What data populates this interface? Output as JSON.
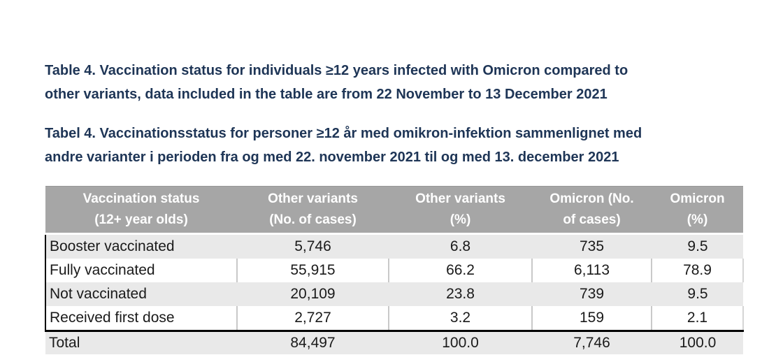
{
  "titles": {
    "english_line1": "Table 4. Vaccination status for individuals ≥12 years infected with Omicron compared to",
    "english_line2": "other variants, data included in the table are from 22 November to 13 December 2021",
    "danish_line1": "Tabel 4. Vaccinationsstatus for personer ≥12 år med omikron-infektion sammenlignet med",
    "danish_line2": "andre varianter i perioden fra og med 22. november 2021 til og med 13. december 2021"
  },
  "table": {
    "header": [
      {
        "line1": "Vaccination status",
        "line2": "(12+ year olds)"
      },
      {
        "line1": "Other variants",
        "line2": "(No. of cases)"
      },
      {
        "line1": "Other variants",
        "line2": "(%)"
      },
      {
        "line1": "Omicron (No.",
        "line2": "of cases)"
      },
      {
        "line1": "Omicron",
        "line2": "(%)"
      }
    ],
    "rows": [
      {
        "label": "Booster vaccinated",
        "other_cases": "5,746",
        "other_pct": "6.8",
        "omicron_cases": "735",
        "omicron_pct": "9.5"
      },
      {
        "label": "Fully vaccinated",
        "other_cases": "55,915",
        "other_pct": "66.2",
        "omicron_cases": "6,113",
        "omicron_pct": "78.9"
      },
      {
        "label": "Not vaccinated",
        "other_cases": "20,109",
        "other_pct": "23.8",
        "omicron_cases": "739",
        "omicron_pct": "9.5"
      },
      {
        "label": "Received first dose",
        "other_cases": "2,727",
        "other_pct": "3.2",
        "omicron_cases": "159",
        "omicron_pct": "2.1"
      }
    ],
    "total": {
      "label": "Total",
      "other_cases": "84,497",
      "other_pct": "100.0",
      "omicron_cases": "7,746",
      "omicron_pct": "100.0"
    }
  },
  "colors": {
    "title_text": "#1e3556",
    "header_bg": "#a6a6a6",
    "header_text": "#ffffff",
    "row_alt_bg": "#e9e9e9",
    "row_white_bg": "#ffffff",
    "separator": "#c9c9c9",
    "rule_black": "#000000"
  }
}
